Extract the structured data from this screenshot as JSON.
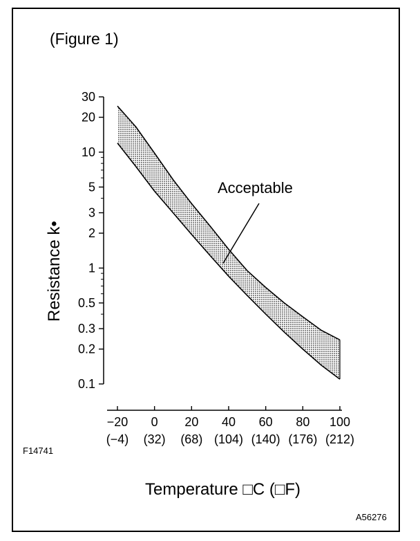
{
  "figure_title": "(Figure 1)",
  "figure_id_left": "F14741",
  "figure_id_right": "A56276",
  "chart_data": {
    "type": "area",
    "title": "(Figure 1)",
    "ylabel": "Resistance k•",
    "xlabel": "Temperature □C (□F)",
    "yscale": "log",
    "ylim": [
      0.1,
      30
    ],
    "xlim": [
      -20,
      100
    ],
    "y_ticks": [
      {
        "value": 30,
        "label": "30"
      },
      {
        "value": 20,
        "label": "20"
      },
      {
        "value": 10,
        "label": "10"
      },
      {
        "value": 5,
        "label": "5"
      },
      {
        "value": 3,
        "label": "3"
      },
      {
        "value": 2,
        "label": "2"
      },
      {
        "value": 1,
        "label": "1"
      },
      {
        "value": 0.5,
        "label": "0.5"
      },
      {
        "value": 0.3,
        "label": "0.3"
      },
      {
        "value": 0.2,
        "label": "0.2"
      },
      {
        "value": 0.1,
        "label": "0.1"
      }
    ],
    "x_ticks": [
      {
        "value": -20,
        "label": "−20",
        "label_f": "(−4)"
      },
      {
        "value": 0,
        "label": "0",
        "label_f": "(32)"
      },
      {
        "value": 20,
        "label": "20",
        "label_f": "(68)"
      },
      {
        "value": 40,
        "label": "40",
        "label_f": "(104)"
      },
      {
        "value": 60,
        "label": "60",
        "label_f": "(140)"
      },
      {
        "value": 80,
        "label": "80",
        "label_f": "(176)"
      },
      {
        "value": 100,
        "label": "100",
        "label_f": "(212)"
      }
    ],
    "series": [
      {
        "x": [
          -20,
          -10,
          0,
          10,
          20,
          30,
          40,
          50,
          60,
          70,
          80,
          90,
          100
        ],
        "y": [
          25,
          16.5,
          9.8,
          5.8,
          3.6,
          2.3,
          1.45,
          0.95,
          0.68,
          0.5,
          0.38,
          0.29,
          0.24
        ]
      },
      {
        "x": [
          -20,
          -10,
          0,
          10,
          20,
          30,
          40,
          50,
          60,
          70,
          80,
          90,
          100
        ],
        "y": [
          12,
          7.5,
          4.6,
          3.0,
          1.95,
          1.28,
          0.85,
          0.58,
          0.4,
          0.28,
          0.2,
          0.145,
          0.11
        ]
      }
    ],
    "band_fill": "#b8b8b8",
    "annotation": {
      "text": "Acceptable",
      "x": 40,
      "y": 1.1
    },
    "grid": false,
    "legend": "none"
  }
}
